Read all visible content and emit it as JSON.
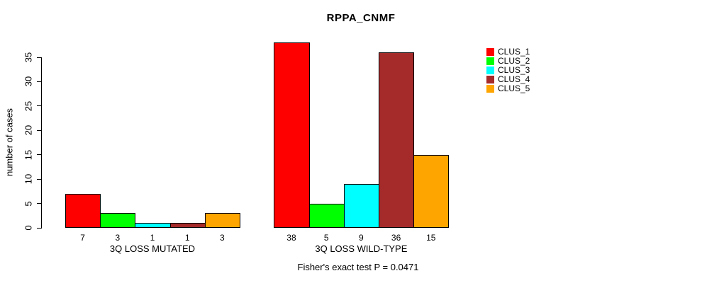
{
  "title": "RPPA_CNMF",
  "y_axis": {
    "label": "number of cases",
    "ticks": [
      0,
      5,
      10,
      15,
      20,
      25,
      30,
      35
    ]
  },
  "footer": "Fisher's exact test P = 0.0471",
  "legend": {
    "items": [
      {
        "label": "CLUS_1",
        "color": "#FF0000"
      },
      {
        "label": "CLUS_2",
        "color": "#00FF00"
      },
      {
        "label": "CLUS_3",
        "color": "#00FFFF"
      },
      {
        "label": "CLUS_4",
        "color": "#A52A2A"
      },
      {
        "label": "CLUS_5",
        "color": "#FFA500"
      }
    ]
  },
  "chart_data": {
    "type": "bar",
    "title": "RPPA_CNMF",
    "ylabel": "number of cases",
    "xlabel": "",
    "ylim": [
      0,
      38
    ],
    "yticks": [
      0,
      5,
      10,
      15,
      20,
      25,
      30,
      35
    ],
    "grid": false,
    "legend_position": "right-outside",
    "bar_value_labels_shown": true,
    "groups": [
      {
        "label": "3Q LOSS MUTATED",
        "values": [
          7,
          3,
          1,
          1,
          3
        ]
      },
      {
        "label": "3Q LOSS WILD-TYPE",
        "values": [
          38,
          5,
          9,
          36,
          15
        ]
      }
    ],
    "series": [
      {
        "name": "CLUS_1",
        "color": "#FF0000",
        "values": [
          7,
          38
        ]
      },
      {
        "name": "CLUS_2",
        "color": "#00FF00",
        "values": [
          3,
          5
        ]
      },
      {
        "name": "CLUS_3",
        "color": "#00FFFF",
        "values": [
          1,
          9
        ]
      },
      {
        "name": "CLUS_4",
        "color": "#A52A2A",
        "values": [
          1,
          36
        ]
      },
      {
        "name": "CLUS_5",
        "color": "#FFA500",
        "values": [
          3,
          15
        ]
      }
    ],
    "annotation": "Fisher's exact test P = 0.0471"
  }
}
